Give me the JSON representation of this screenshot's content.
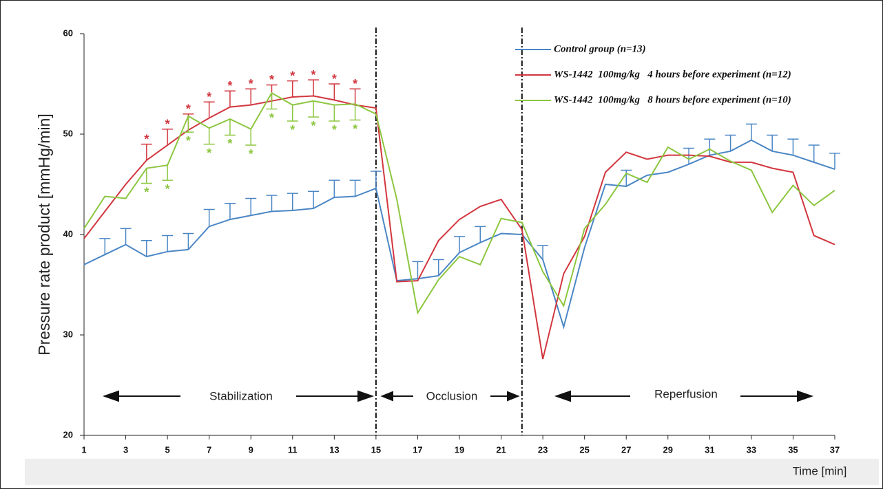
{
  "chart_data": {
    "type": "line",
    "y_label": "Pressure rate product [mmHg/min]",
    "x_label": "Time [min]",
    "x": [
      1,
      2,
      3,
      4,
      5,
      6,
      7,
      8,
      9,
      10,
      11,
      12,
      13,
      14,
      15,
      16,
      17,
      18,
      19,
      20,
      21,
      22,
      23,
      24,
      25,
      26,
      27,
      28,
      29,
      30,
      31,
      32,
      33,
      34,
      35,
      36,
      37
    ],
    "series": [
      {
        "name": "Control group (n=13)",
        "color": "#4a86c5",
        "error_side": "up",
        "values": [
          37.0,
          38.0,
          39.0,
          37.8,
          38.3,
          38.5,
          40.8,
          41.5,
          41.9,
          42.3,
          42.4,
          42.6,
          43.7,
          43.8,
          44.6,
          35.4,
          35.6,
          35.9,
          38.2,
          39.2,
          40.1,
          40.0,
          37.5,
          30.8,
          38.7,
          45.0,
          44.8,
          45.9,
          46.2,
          47.0,
          47.9,
          48.3,
          49.4,
          48.3,
          47.9,
          47.2,
          46.5
        ],
        "errors": [
          null,
          1.6,
          1.6,
          1.6,
          1.6,
          1.6,
          1.7,
          1.6,
          1.7,
          1.6,
          1.7,
          1.7,
          1.7,
          1.6,
          1.7,
          null,
          1.7,
          1.6,
          1.6,
          1.6,
          null,
          null,
          1.4,
          null,
          null,
          null,
          1.6,
          null,
          null,
          1.6,
          1.6,
          1.6,
          1.6,
          1.6,
          1.6,
          1.7,
          1.6
        ]
      },
      {
        "name": "WS-1442  100mg/kg   4 hours before experiment (n=12)",
        "color": "#d2363e",
        "error_side": "up",
        "marker": "*",
        "values": [
          39.6,
          42.3,
          45.0,
          47.4,
          48.9,
          50.4,
          51.6,
          52.7,
          52.9,
          53.3,
          53.7,
          53.8,
          53.4,
          52.9,
          52.6,
          35.3,
          35.4,
          39.4,
          41.5,
          42.8,
          43.5,
          40.5,
          27.6,
          36.1,
          39.8,
          46.2,
          48.2,
          47.5,
          47.9,
          47.9,
          47.8,
          47.2,
          47.2,
          46.6,
          46.2,
          39.9,
          39.0
        ],
        "errors": [
          null,
          null,
          null,
          1.6,
          1.6,
          1.6,
          1.6,
          1.6,
          1.6,
          1.6,
          1.6,
          1.6,
          1.6,
          1.6,
          null,
          null,
          null,
          null,
          null,
          null,
          null,
          null,
          null,
          null,
          null,
          null,
          null,
          null,
          null,
          null,
          null,
          null,
          null,
          null,
          null,
          null,
          null
        ]
      },
      {
        "name": "WS-1442  100mg/kg   8 hours before experiment (n=10)",
        "color": "#8cc63f",
        "error_side": "down",
        "marker": "*",
        "values": [
          40.6,
          43.8,
          43.6,
          46.6,
          46.9,
          51.8,
          50.6,
          51.5,
          50.5,
          54.1,
          52.9,
          53.3,
          52.9,
          53.0,
          52.0,
          43.5,
          32.2,
          35.5,
          37.8,
          37.0,
          41.6,
          41.2,
          36.3,
          32.9,
          40.6,
          43.0,
          46.1,
          45.2,
          48.7,
          47.5,
          48.5,
          47.3,
          46.4,
          42.2,
          44.9,
          42.9,
          44.4
        ],
        "errors": [
          null,
          null,
          null,
          1.5,
          1.5,
          1.6,
          1.6,
          1.6,
          1.6,
          1.6,
          1.6,
          1.6,
          1.6,
          1.6,
          null,
          null,
          null,
          null,
          null,
          null,
          null,
          null,
          null,
          null,
          null,
          null,
          null,
          null,
          null,
          null,
          null,
          null,
          null,
          null,
          null,
          null,
          null
        ]
      }
    ],
    "phase_boundaries": [
      15,
      22
    ],
    "phases": [
      "Stabilization",
      "Occlusion",
      "Reperfusion"
    ],
    "xlim": [
      1,
      37
    ],
    "xticks": [
      1,
      3,
      5,
      7,
      9,
      11,
      13,
      15,
      17,
      19,
      21,
      23,
      25,
      27,
      29,
      31,
      33,
      35,
      37
    ],
    "ylim": [
      20,
      60
    ],
    "yticks": [
      20,
      30,
      40,
      50,
      60
    ]
  }
}
